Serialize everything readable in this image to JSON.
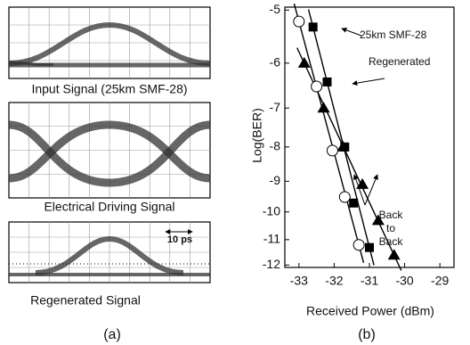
{
  "figure_a": {
    "captions": [
      "Input Signal (25km SMF-28)",
      "Electrical Driving Signal",
      "Regenerated Signal"
    ],
    "scale_label": "10 ps"
  },
  "panel_labels": [
    "(a)",
    "(b)"
  ],
  "chart_data": {
    "type": "scatter",
    "xlabel": "Received Power (dBm)",
    "ylabel": "Log(BER)",
    "xlim": [
      -33.4,
      -28.6
    ],
    "xticks": [
      -33,
      -32,
      -31,
      -30,
      -29
    ],
    "ylim": [
      -4.95,
      -12.1
    ],
    "yticks": [
      -5,
      -6,
      -7,
      -8,
      -9,
      -10,
      -11,
      -12
    ],
    "yscale": "log-negated",
    "series": [
      {
        "name": "25km SMF-28",
        "marker": "square",
        "color": "#000000",
        "x": [
          -32.6,
          -32.2,
          -31.7,
          -31.45,
          -31.0
        ],
        "values": [
          -5.3,
          -6.4,
          -8.0,
          -9.7,
          -11.3
        ]
      },
      {
        "name": "Regenerated",
        "marker": "triangle",
        "color": "#000000",
        "x": [
          -32.85,
          -32.3,
          -31.75,
          -31.2,
          -30.75,
          -30.3
        ],
        "values": [
          -6.0,
          -7.0,
          -8.0,
          -9.1,
          -10.3,
          -11.6
        ]
      },
      {
        "name": "Back to Back",
        "marker": "circle",
        "color": "#000000",
        "x": [
          -33.0,
          -32.5,
          -32.05,
          -31.7,
          -31.3
        ],
        "values": [
          -5.2,
          -6.5,
          -8.1,
          -9.5,
          -11.2
        ]
      }
    ]
  }
}
